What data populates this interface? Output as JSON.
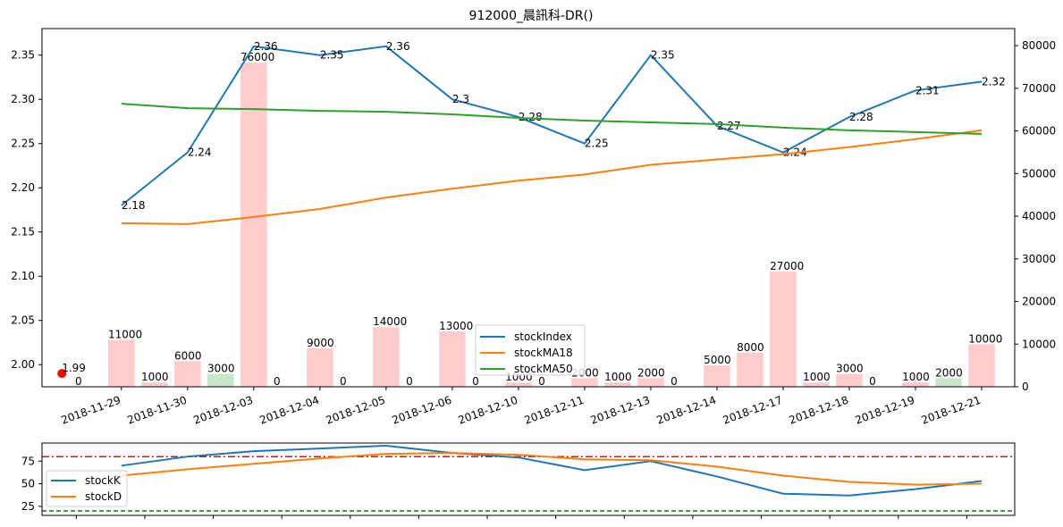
{
  "chart_data": [
    {
      "type": "line+bar",
      "title": "912000_晨訊科-DR()",
      "categories": [
        "2018-11-29",
        "2018-11-30",
        "2018-12-03",
        "2018-12-04",
        "2018-12-05",
        "2018-12-06",
        "2018-12-10",
        "2018-12-11",
        "2018-12-13",
        "2018-12-14",
        "2018-12-17",
        "2018-12-18",
        "2018-12-19",
        "2018-12-21"
      ],
      "y_left": {
        "ylim": [
          1.975,
          2.38
        ],
        "ticks": [
          "2.00",
          "2.05",
          "2.10",
          "2.15",
          "2.20",
          "2.25",
          "2.30",
          "2.35"
        ]
      },
      "y_right": {
        "ylim": [
          0,
          84000
        ],
        "ticks": [
          "0",
          "10000",
          "20000",
          "30000",
          "40000",
          "50000",
          "60000",
          "70000",
          "80000"
        ]
      },
      "series": [
        {
          "name": "stockIndex",
          "color": "#1f77b4",
          "values": [
            2.18,
            2.24,
            2.36,
            2.35,
            2.36,
            2.3,
            2.28,
            2.25,
            2.35,
            2.27,
            2.24,
            2.28,
            2.31,
            2.32
          ],
          "labels": [
            "2.18",
            "2.24",
            "2.36",
            "2.35",
            "2.36",
            "2.3",
            "2.28",
            "2.25",
            "2.35",
            "2.27",
            "2.24",
            "2.28",
            "2.31",
            "2.32"
          ]
        },
        {
          "name": "stockMA18",
          "color": "#ff7f0e",
          "values": [
            2.16,
            2.159,
            2.167,
            2.176,
            2.189,
            2.199,
            2.208,
            2.215,
            2.226,
            2.232,
            2.238,
            2.246,
            2.255,
            2.265
          ]
        },
        {
          "name": "stockMA50",
          "color": "#2ca02c",
          "values": [
            2.295,
            2.29,
            2.289,
            2.287,
            2.286,
            2.283,
            2.279,
            2.276,
            2.274,
            2.272,
            2.268,
            2.265,
            2.263,
            2.261
          ]
        }
      ],
      "volume": {
        "positions": [
          -0.5,
          0,
          0.5,
          1,
          1.5,
          2,
          2.5,
          3,
          3.5,
          4,
          4.5,
          5,
          5.5,
          6,
          6.5,
          7,
          7.5,
          8,
          8.5,
          9,
          9.5,
          10,
          10.5,
          11,
          11.5,
          12,
          12.5,
          13
        ],
        "values": [
          0,
          11000,
          1000,
          6000,
          3000,
          76000,
          0,
          9000,
          0,
          14000,
          0,
          13000,
          0,
          1000,
          0,
          2000,
          1000,
          2000,
          0,
          5000,
          8000,
          27000,
          1000,
          3000,
          0,
          1000,
          2000,
          10000
        ],
        "labels": [
          "0",
          "11000",
          "1000",
          "6000",
          "3000",
          "76000",
          "0",
          "9000",
          "0",
          "14000",
          "0",
          "13000",
          "0",
          "1000",
          "0",
          "2000",
          "1000",
          "2000",
          "0",
          "5000",
          "8000",
          "27000",
          "1000",
          "3000",
          "0",
          "1000",
          "2000",
          "10000"
        ],
        "colors": [
          "#ffcccc",
          "#ffcccc",
          "#ffcccc",
          "#ffcccc",
          "#c8e6c8",
          "#ffcccc",
          "#ffcccc",
          "#ffcccc",
          "#ffcccc",
          "#ffcccc",
          "#ffcccc",
          "#ffcccc",
          "#ffcccc",
          "#ffcccc",
          "#ffcccc",
          "#ffcccc",
          "#ffcccc",
          "#ffcccc",
          "#ffcccc",
          "#ffcccc",
          "#ffcccc",
          "#ffcccc",
          "#ffcccc",
          "#ffcccc",
          "#ffcccc",
          "#ffcccc",
          "#c8e6c8",
          "#ffcccc"
        ]
      },
      "marker": {
        "x": -0.9,
        "y": 1.99,
        "label": "1.99",
        "color": "#ff0000"
      },
      "legend": {
        "placement": "lower-center",
        "entries": [
          "stockIndex",
          "stockMA18",
          "stockMA50"
        ]
      }
    },
    {
      "type": "line",
      "ylim": [
        15,
        95
      ],
      "yticks": [
        "25",
        "50",
        "75"
      ],
      "series": [
        {
          "name": "stockK",
          "color": "#1f77b4",
          "values": [
            70,
            80,
            86,
            89,
            92,
            84,
            79,
            65,
            75,
            58,
            39,
            37,
            44,
            53
          ]
        },
        {
          "name": "stockD",
          "color": "#ff7f0e",
          "values": [
            59,
            66,
            72,
            78,
            83,
            84,
            82,
            77,
            76,
            69,
            59,
            52,
            49,
            50
          ]
        }
      ],
      "hlines": [
        {
          "y": 80,
          "color": "#ff0000",
          "style": "dashdot"
        },
        {
          "y": 20,
          "color": "#008000",
          "style": "dashed"
        }
      ],
      "legend": {
        "placement": "left",
        "entries": [
          "stockK",
          "stockD"
        ]
      }
    }
  ]
}
